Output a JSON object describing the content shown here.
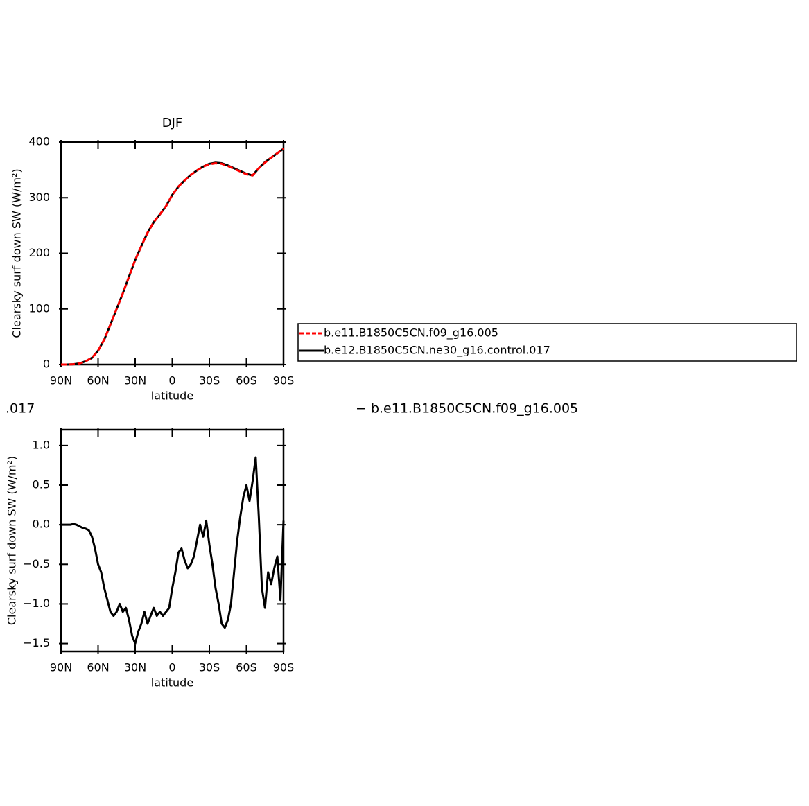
{
  "chart_data": [
    {
      "type": "line",
      "title": "DJF",
      "xlabel": "latitude",
      "ylabel": "Clearsky surf down SW (W/m²)",
      "x": [
        90,
        85,
        80,
        75,
        70,
        65,
        60,
        55,
        50,
        45,
        40,
        35,
        30,
        25,
        20,
        15,
        10,
        5,
        0,
        -5,
        -10,
        -15,
        -20,
        -25,
        -30,
        -35,
        -40,
        -45,
        -50,
        -55,
        -60,
        -65,
        -70,
        -75,
        -80,
        -85,
        -90
      ],
      "xlim": [
        90,
        -90
      ],
      "xticks": [
        {
          "value": 90,
          "label": "90N"
        },
        {
          "value": 60,
          "label": "60N"
        },
        {
          "value": 30,
          "label": "30N"
        },
        0,
        {
          "value": -30,
          "label": "30S"
        },
        {
          "value": -60,
          "label": "60S"
        },
        {
          "value": -90,
          "label": "90S"
        }
      ],
      "ylim": [
        0,
        400
      ],
      "yticks": [
        0,
        100,
        200,
        300,
        400
      ],
      "series": [
        {
          "name": "b.e11.B1850C5CN.f09_g16.005",
          "color": "#ff0000",
          "linestyle": "dashed",
          "values": [
            0,
            0,
            0.5,
            2,
            6,
            12,
            25,
            45,
            72,
            100,
            128,
            158,
            188,
            213,
            237,
            256,
            270,
            285,
            305,
            320,
            331,
            341,
            349,
            356,
            360,
            362,
            361,
            357,
            352,
            347,
            342,
            340,
            353,
            363,
            372,
            380,
            388
          ]
        },
        {
          "name": "b.e12.B1850C5CN.ne30_g16.control.017",
          "color": "#000000",
          "linestyle": "solid",
          "values": [
            0,
            0,
            0.5,
            2,
            6,
            12,
            25,
            45,
            72,
            100,
            128,
            158,
            188,
            213,
            237,
            256,
            270,
            285,
            305,
            320,
            331,
            341,
            349,
            356,
            361,
            363,
            362,
            358,
            353,
            348,
            343,
            340,
            353,
            364,
            372,
            380,
            388
          ]
        }
      ]
    },
    {
      "type": "line",
      "xlabel": "latitude",
      "ylabel": "Clearsky surf down SW (W/m²)",
      "annotations": [
        ".017",
        "− b.e11.B1850C5CN.f09_g16.005"
      ],
      "x": [
        90,
        87.5,
        85,
        82.5,
        80,
        77.5,
        75,
        72.5,
        70,
        67.5,
        65,
        62.5,
        60,
        57.5,
        55,
        52.5,
        50,
        47.5,
        45,
        42.5,
        40,
        37.5,
        35,
        32.5,
        30,
        27.5,
        25,
        22.5,
        20,
        17.5,
        15,
        12.5,
        10,
        7.5,
        5,
        2.5,
        0,
        -2.5,
        -5,
        -7.5,
        -10,
        -12.5,
        -15,
        -17.5,
        -20,
        -22.5,
        -25,
        -27.5,
        -30,
        -32.5,
        -35,
        -37.5,
        -40,
        -42.5,
        -45,
        -47.5,
        -50,
        -52.5,
        -55,
        -57.5,
        -60,
        -62.5,
        -65,
        -67.5,
        -70,
        -72.5,
        -75,
        -77.5,
        -80,
        -82.5,
        -85,
        -87.5,
        -90
      ],
      "xlim": [
        90,
        -90
      ],
      "xticks": [
        {
          "value": 90,
          "label": "90N"
        },
        {
          "value": 60,
          "label": "60N"
        },
        {
          "value": 30,
          "label": "30N"
        },
        0,
        {
          "value": -30,
          "label": "30S"
        },
        {
          "value": -60,
          "label": "60S"
        },
        {
          "value": -90,
          "label": "90S"
        }
      ],
      "ylim": [
        -1.6,
        1.2
      ],
      "yticks": [
        {
          "value": -1.5,
          "label": "−1.5"
        },
        {
          "value": -1,
          "label": "−1.0"
        },
        {
          "value": -0.5,
          "label": "−0.5"
        },
        {
          "value": 0,
          "label": "0.0"
        },
        {
          "value": 0.5,
          "label": "0.5"
        },
        {
          "value": 1,
          "label": "1.0"
        }
      ],
      "color": "#000000",
      "values": [
        0,
        0,
        0,
        0,
        0.01,
        0,
        -0.02,
        -0.04,
        -0.05,
        -0.07,
        -0.15,
        -0.3,
        -0.5,
        -0.6,
        -0.8,
        -0.95,
        -1.1,
        -1.15,
        -1.1,
        -1.0,
        -1.1,
        -1.05,
        -1.2,
        -1.4,
        -1.5,
        -1.35,
        -1.25,
        -1.1,
        -1.25,
        -1.15,
        -1.05,
        -1.15,
        -1.1,
        -1.15,
        -1.1,
        -1.05,
        -0.8,
        -0.6,
        -0.35,
        -0.3,
        -0.45,
        -0.55,
        -0.5,
        -0.4,
        -0.2,
        0,
        -0.15,
        0.05,
        -0.25,
        -0.5,
        -0.8,
        -1.0,
        -1.25,
        -1.3,
        -1.2,
        -1.0,
        -0.6,
        -0.2,
        0.1,
        0.35,
        0.5,
        0.3,
        0.55,
        0.85,
        0.1,
        -0.8,
        -1.05,
        -0.6,
        -0.75,
        -0.55,
        -0.4,
        -0.95,
        0.05
      ]
    }
  ]
}
